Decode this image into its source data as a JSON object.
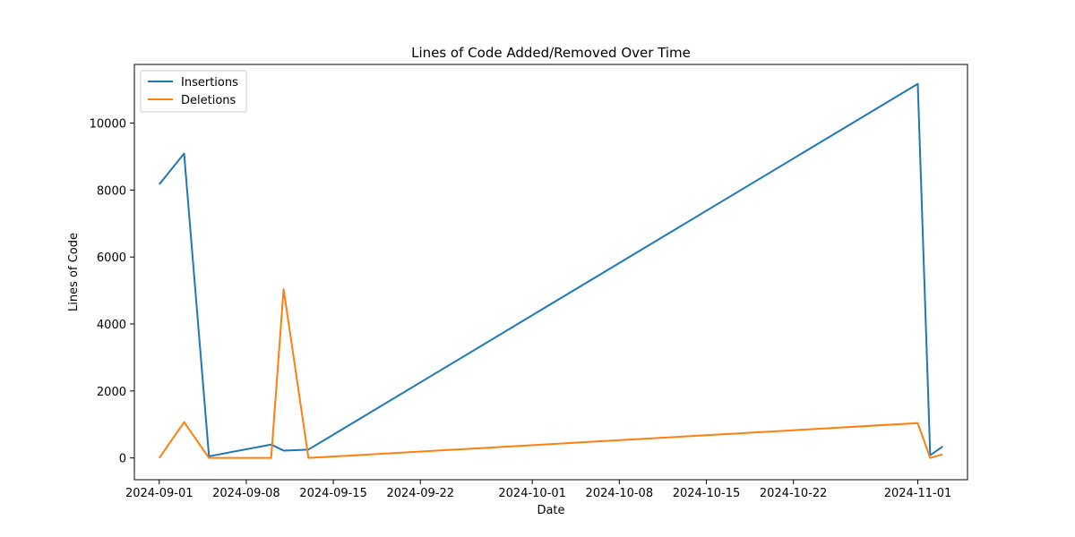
{
  "chart_data": {
    "type": "line",
    "title": "Lines of Code Added/Removed Over Time",
    "xlabel": "Date",
    "ylabel": "Lines of Code",
    "xlim": [
      "2024-08-30",
      "2024-11-05"
    ],
    "ylim": [
      -650,
      11750
    ],
    "x_ticks": [
      "2024-09-01",
      "2024-09-08",
      "2024-09-15",
      "2024-09-22",
      "2024-10-01",
      "2024-10-08",
      "2024-10-15",
      "2024-10-22",
      "2024-11-01"
    ],
    "y_ticks": [
      0,
      2000,
      4000,
      6000,
      8000,
      10000
    ],
    "y_tick_labels": [
      "0",
      "2000",
      "4000",
      "6000",
      "8000",
      "10000"
    ],
    "grid": false,
    "legend_position": "top-left",
    "x": [
      "2024-09-01",
      "2024-09-03",
      "2024-09-05",
      "2024-09-10",
      "2024-09-11",
      "2024-09-13",
      "2024-11-01",
      "2024-11-02",
      "2024-11-03"
    ],
    "series": [
      {
        "name": "Insertions",
        "color": "#1f77b4",
        "values": [
          8170,
          9090,
          50,
          400,
          220,
          250,
          11170,
          80,
          340
        ]
      },
      {
        "name": "Deletions",
        "color": "#ff7f0e",
        "values": [
          0,
          1070,
          0,
          0,
          5040,
          0,
          1040,
          0,
          110
        ]
      }
    ]
  }
}
